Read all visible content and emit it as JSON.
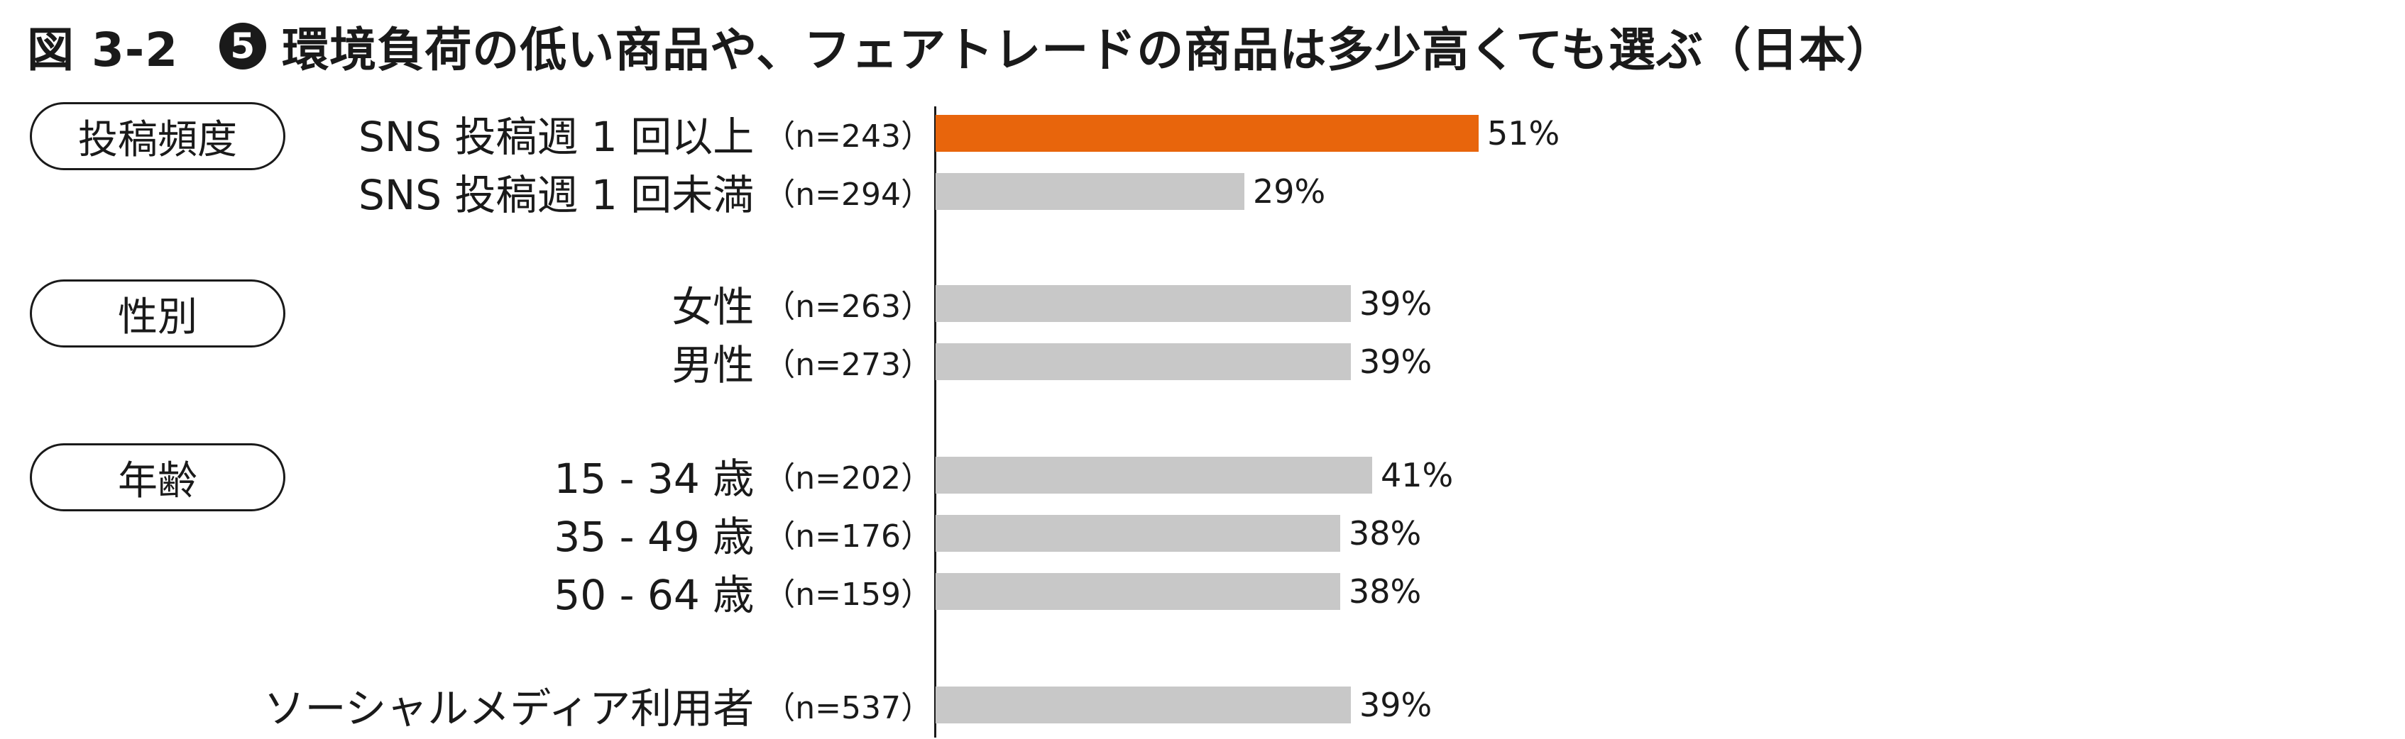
{
  "title": {
    "figure": "図 3-2",
    "number": "5",
    "text": "環境負荷の低い商品や、フェアトレードの商品は多少高くても選ぶ（日本）"
  },
  "groups": [
    {
      "label": "投稿頻度"
    },
    {
      "label": "性別"
    },
    {
      "label": "年齢"
    }
  ],
  "colors": {
    "highlight": "#E8650C",
    "default": "#C8C8C8",
    "text": "#1A1A1A"
  },
  "chart_data": {
    "type": "bar",
    "orientation": "horizontal",
    "xlim": [
      0,
      100
    ],
    "grid": false,
    "rows": [
      {
        "label": "SNS 投稿週 1 回以上",
        "n": "（n=243）",
        "value": 51,
        "value_label": "51%",
        "highlight": true
      },
      {
        "label": "SNS 投稿週 1 回未満",
        "n": "（n=294）",
        "value": 29,
        "value_label": "29%",
        "highlight": false
      },
      {
        "label": "女性",
        "n": "（n=263）",
        "value": 39,
        "value_label": "39%",
        "highlight": false
      },
      {
        "label": "男性",
        "n": "（n=273）",
        "value": 39,
        "value_label": "39%",
        "highlight": false
      },
      {
        "label": "15 - 34 歳",
        "n": "（n=202）",
        "value": 41,
        "value_label": "41%",
        "highlight": false
      },
      {
        "label": "35 - 49 歳",
        "n": "（n=176）",
        "value": 38,
        "value_label": "38%",
        "highlight": false
      },
      {
        "label": "50 - 64 歳",
        "n": "（n=159）",
        "value": 38,
        "value_label": "38%",
        "highlight": false
      },
      {
        "label": "ソーシャルメディア利用者",
        "n": "（n=537）",
        "value": 39,
        "value_label": "39%",
        "highlight": false
      }
    ]
  }
}
